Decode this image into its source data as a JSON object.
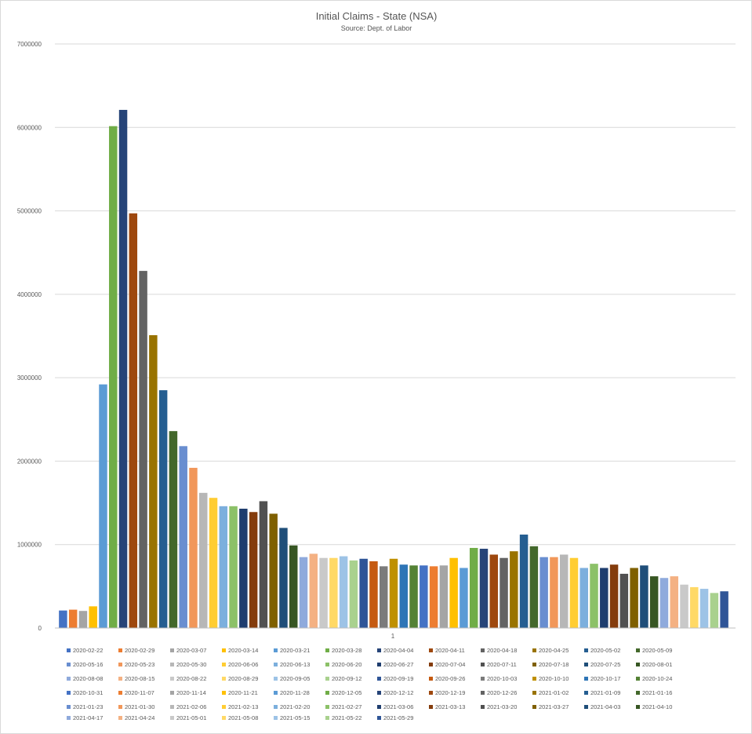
{
  "chart_data": {
    "type": "bar",
    "title": "Initial Claims - State (NSA)",
    "subtitle": "Source: Dept. of Labor",
    "categories": [
      "1"
    ],
    "ylim": [
      0,
      7000000
    ],
    "yticks": [
      0,
      1000000,
      2000000,
      3000000,
      4000000,
      5000000,
      6000000,
      7000000
    ],
    "ytick_labels": [
      "0",
      "1000000",
      "2000000",
      "3000000",
      "4000000",
      "5000000",
      "6000000",
      "7000000"
    ],
    "grid": true,
    "legend_position": "bottom",
    "palette": [
      "#4472C4",
      "#ED7D31",
      "#A5A5A5",
      "#FFC000",
      "#5B9BD5",
      "#70AD47",
      "#264478",
      "#9E480E",
      "#636363",
      "#997300",
      "#255E91",
      "#43682B",
      "#698ED0",
      "#F1975A",
      "#B7B7B7",
      "#FFCD33",
      "#7CAFDD",
      "#8CC168",
      "#1E3D6E",
      "#843C0C",
      "#515151",
      "#7F6000",
      "#1F4E79",
      "#375623",
      "#8FAADC",
      "#F4B183",
      "#C9C9C9",
      "#FFD966",
      "#9DC3E6",
      "#A9D18E",
      "#2F5597",
      "#C55A11",
      "#7B7B7B",
      "#BF9000",
      "#2E75B6",
      "#548235"
    ],
    "series": [
      {
        "name": "2020-02-22",
        "values": [
          210000
        ]
      },
      {
        "name": "2020-02-29",
        "values": [
          220000
        ]
      },
      {
        "name": "2020-03-07",
        "values": [
          205000
        ]
      },
      {
        "name": "2020-03-14",
        "values": [
          260000
        ]
      },
      {
        "name": "2020-03-21",
        "values": [
          2920000
        ]
      },
      {
        "name": "2020-03-28",
        "values": [
          6015000
        ]
      },
      {
        "name": "2020-04-04",
        "values": [
          6210000
        ]
      },
      {
        "name": "2020-04-11",
        "values": [
          4970000
        ]
      },
      {
        "name": "2020-04-18",
        "values": [
          4280000
        ]
      },
      {
        "name": "2020-04-25",
        "values": [
          3510000
        ]
      },
      {
        "name": "2020-05-02",
        "values": [
          2850000
        ]
      },
      {
        "name": "2020-05-09",
        "values": [
          2360000
        ]
      },
      {
        "name": "2020-05-16",
        "values": [
          2180000
        ]
      },
      {
        "name": "2020-05-23",
        "values": [
          1920000
        ]
      },
      {
        "name": "2020-05-30",
        "values": [
          1620000
        ]
      },
      {
        "name": "2020-06-06",
        "values": [
          1560000
        ]
      },
      {
        "name": "2020-06-13",
        "values": [
          1460000
        ]
      },
      {
        "name": "2020-06-20",
        "values": [
          1460000
        ]
      },
      {
        "name": "2020-06-27",
        "values": [
          1430000
        ]
      },
      {
        "name": "2020-07-04",
        "values": [
          1390000
        ]
      },
      {
        "name": "2020-07-11",
        "values": [
          1520000
        ]
      },
      {
        "name": "2020-07-18",
        "values": [
          1370000
        ]
      },
      {
        "name": "2020-07-25",
        "values": [
          1200000
        ]
      },
      {
        "name": "2020-08-01",
        "values": [
          990000
        ]
      },
      {
        "name": "2020-08-08",
        "values": [
          850000
        ]
      },
      {
        "name": "2020-08-15",
        "values": [
          890000
        ]
      },
      {
        "name": "2020-08-22",
        "values": [
          840000
        ]
      },
      {
        "name": "2020-08-29",
        "values": [
          840000
        ]
      },
      {
        "name": "2020-09-05",
        "values": [
          860000
        ]
      },
      {
        "name": "2020-09-12",
        "values": [
          810000
        ]
      },
      {
        "name": "2020-09-19",
        "values": [
          830000
        ]
      },
      {
        "name": "2020-09-26",
        "values": [
          800000
        ]
      },
      {
        "name": "2020-10-03",
        "values": [
          740000
        ]
      },
      {
        "name": "2020-10-10",
        "values": [
          830000
        ]
      },
      {
        "name": "2020-10-17",
        "values": [
          760000
        ]
      },
      {
        "name": "2020-10-24",
        "values": [
          750000
        ]
      },
      {
        "name": "2020-10-31",
        "values": [
          750000
        ]
      },
      {
        "name": "2020-11-07",
        "values": [
          740000
        ]
      },
      {
        "name": "2020-11-14",
        "values": [
          750000
        ]
      },
      {
        "name": "2020-11-21",
        "values": [
          840000
        ]
      },
      {
        "name": "2020-11-28",
        "values": [
          720000
        ]
      },
      {
        "name": "2020-12-05",
        "values": [
          960000
        ]
      },
      {
        "name": "2020-12-12",
        "values": [
          950000
        ]
      },
      {
        "name": "2020-12-19",
        "values": [
          880000
        ]
      },
      {
        "name": "2020-12-26",
        "values": [
          840000
        ]
      },
      {
        "name": "2021-01-02",
        "values": [
          920000
        ]
      },
      {
        "name": "2021-01-09",
        "values": [
          1120000
        ]
      },
      {
        "name": "2021-01-16",
        "values": [
          980000
        ]
      },
      {
        "name": "2021-01-23",
        "values": [
          850000
        ]
      },
      {
        "name": "2021-01-30",
        "values": [
          850000
        ]
      },
      {
        "name": "2021-02-06",
        "values": [
          880000
        ]
      },
      {
        "name": "2021-02-13",
        "values": [
          840000
        ]
      },
      {
        "name": "2021-02-20",
        "values": [
          720000
        ]
      },
      {
        "name": "2021-02-27",
        "values": [
          770000
        ]
      },
      {
        "name": "2021-03-06",
        "values": [
          720000
        ]
      },
      {
        "name": "2021-03-13",
        "values": [
          760000
        ]
      },
      {
        "name": "2021-03-20",
        "values": [
          650000
        ]
      },
      {
        "name": "2021-03-27",
        "values": [
          720000
        ]
      },
      {
        "name": "2021-04-03",
        "values": [
          750000
        ]
      },
      {
        "name": "2021-04-10",
        "values": [
          620000
        ]
      },
      {
        "name": "2021-04-17",
        "values": [
          600000
        ]
      },
      {
        "name": "2021-04-24",
        "values": [
          620000
        ]
      },
      {
        "name": "2021-05-01",
        "values": [
          520000
        ]
      },
      {
        "name": "2021-05-08",
        "values": [
          490000
        ]
      },
      {
        "name": "2021-05-15",
        "values": [
          470000
        ]
      },
      {
        "name": "2021-05-22",
        "values": [
          420000
        ]
      },
      {
        "name": "2021-05-29",
        "values": [
          440000
        ]
      }
    ]
  }
}
